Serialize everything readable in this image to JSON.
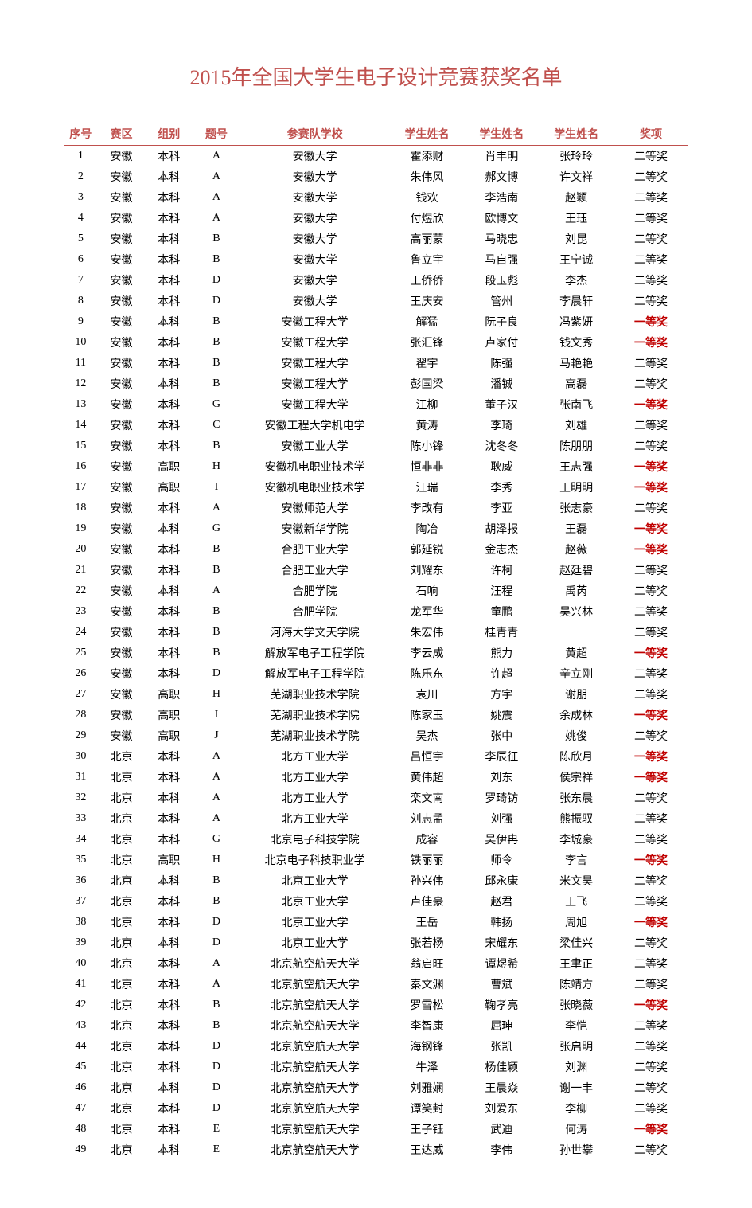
{
  "title": "2015年全国大学生电子设计竞赛获奖名单",
  "headers": {
    "seq": "序号",
    "region": "赛区",
    "group": "组别",
    "topic": "题号",
    "school": "参赛队学校",
    "name1": "学生姓名",
    "name2": "学生姓名",
    "name3": "学生姓名",
    "award": "奖项"
  },
  "award_colors": {
    "first": "#c00000",
    "second": "#000000"
  },
  "rows": [
    {
      "seq": "1",
      "region": "安徽",
      "group": "本科",
      "topic": "A",
      "school": "安徽大学",
      "n1": "霍添财",
      "n2": "肖丰明",
      "n3": "张玲玲",
      "award": "二等奖"
    },
    {
      "seq": "2",
      "region": "安徽",
      "group": "本科",
      "topic": "A",
      "school": "安徽大学",
      "n1": "朱伟风",
      "n2": "郝文博",
      "n3": "许文祥",
      "award": "二等奖"
    },
    {
      "seq": "3",
      "region": "安徽",
      "group": "本科",
      "topic": "A",
      "school": "安徽大学",
      "n1": "钱欢",
      "n2": "李浩南",
      "n3": "赵颖",
      "award": "二等奖"
    },
    {
      "seq": "4",
      "region": "安徽",
      "group": "本科",
      "topic": "A",
      "school": "安徽大学",
      "n1": "付煜欣",
      "n2": "欧博文",
      "n3": "王珏",
      "award": "二等奖"
    },
    {
      "seq": "5",
      "region": "安徽",
      "group": "本科",
      "topic": "B",
      "school": "安徽大学",
      "n1": "高丽蒙",
      "n2": "马晓忠",
      "n3": "刘昆",
      "award": "二等奖"
    },
    {
      "seq": "6",
      "region": "安徽",
      "group": "本科",
      "topic": "B",
      "school": "安徽大学",
      "n1": "鲁立宇",
      "n2": "马自强",
      "n3": "王宁诚",
      "award": "二等奖"
    },
    {
      "seq": "7",
      "region": "安徽",
      "group": "本科",
      "topic": "D",
      "school": "安徽大学",
      "n1": "王侨侨",
      "n2": "段玉彪",
      "n3": "李杰",
      "award": "二等奖"
    },
    {
      "seq": "8",
      "region": "安徽",
      "group": "本科",
      "topic": "D",
      "school": "安徽大学",
      "n1": "王庆安",
      "n2": "管州",
      "n3": "李晨轩",
      "award": "二等奖"
    },
    {
      "seq": "9",
      "region": "安徽",
      "group": "本科",
      "topic": "B",
      "school": "安徽工程大学",
      "n1": "解猛",
      "n2": "阮子良",
      "n3": "冯紫妍",
      "award": "一等奖"
    },
    {
      "seq": "10",
      "region": "安徽",
      "group": "本科",
      "topic": "B",
      "school": "安徽工程大学",
      "n1": "张汇锋",
      "n2": "卢家付",
      "n3": "钱文秀",
      "award": "一等奖"
    },
    {
      "seq": "11",
      "region": "安徽",
      "group": "本科",
      "topic": "B",
      "school": "安徽工程大学",
      "n1": "翟宇",
      "n2": "陈强",
      "n3": "马艳艳",
      "award": "二等奖"
    },
    {
      "seq": "12",
      "region": "安徽",
      "group": "本科",
      "topic": "B",
      "school": "安徽工程大学",
      "n1": "彭国梁",
      "n2": "潘铖",
      "n3": "高磊",
      "award": "二等奖"
    },
    {
      "seq": "13",
      "region": "安徽",
      "group": "本科",
      "topic": "G",
      "school": "安徽工程大学",
      "n1": "江柳",
      "n2": "董子汉",
      "n3": "张南飞",
      "award": "一等奖"
    },
    {
      "seq": "14",
      "region": "安徽",
      "group": "本科",
      "topic": "C",
      "school": "安徽工程大学机电学",
      "n1": "黄涛",
      "n2": "李琦",
      "n3": "刘雄",
      "award": "二等奖"
    },
    {
      "seq": "15",
      "region": "安徽",
      "group": "本科",
      "topic": "B",
      "school": "安徽工业大学",
      "n1": "陈小锋",
      "n2": "沈冬冬",
      "n3": "陈朋朋",
      "award": "二等奖"
    },
    {
      "seq": "16",
      "region": "安徽",
      "group": "高职",
      "topic": "H",
      "school": "安徽机电职业技术学",
      "n1": "恒非非",
      "n2": "耿威",
      "n3": "王志强",
      "award": "一等奖"
    },
    {
      "seq": "17",
      "region": "安徽",
      "group": "高职",
      "topic": "I",
      "school": "安徽机电职业技术学",
      "n1": "汪瑞",
      "n2": "李秀",
      "n3": "王明明",
      "award": "一等奖"
    },
    {
      "seq": "18",
      "region": "安徽",
      "group": "本科",
      "topic": "A",
      "school": "安徽师范大学",
      "n1": "李改有",
      "n2": "李亚",
      "n3": "张志豪",
      "award": "二等奖"
    },
    {
      "seq": "19",
      "region": "安徽",
      "group": "本科",
      "topic": "G",
      "school": "安徽新华学院",
      "n1": "陶冶",
      "n2": "胡泽报",
      "n3": "王磊",
      "award": "一等奖"
    },
    {
      "seq": "20",
      "region": "安徽",
      "group": "本科",
      "topic": "B",
      "school": "合肥工业大学",
      "n1": "郭延锐",
      "n2": "金志杰",
      "n3": "赵薇",
      "award": "一等奖"
    },
    {
      "seq": "21",
      "region": "安徽",
      "group": "本科",
      "topic": "B",
      "school": "合肥工业大学",
      "n1": "刘耀东",
      "n2": "许柯",
      "n3": "赵廷碧",
      "award": "二等奖"
    },
    {
      "seq": "22",
      "region": "安徽",
      "group": "本科",
      "topic": "A",
      "school": "合肥学院",
      "n1": "石响",
      "n2": "汪程",
      "n3": "禹芮",
      "award": "二等奖"
    },
    {
      "seq": "23",
      "region": "安徽",
      "group": "本科",
      "topic": "B",
      "school": "合肥学院",
      "n1": "龙军华",
      "n2": "童鹏",
      "n3": "吴兴林",
      "award": "二等奖"
    },
    {
      "seq": "24",
      "region": "安徽",
      "group": "本科",
      "topic": "B",
      "school": "河海大学文天学院",
      "n1": "朱宏伟",
      "n2": "桂青青",
      "n3": "",
      "award": "二等奖"
    },
    {
      "seq": "25",
      "region": "安徽",
      "group": "本科",
      "topic": "B",
      "school": "解放军电子工程学院",
      "n1": "李云成",
      "n2": "熊力",
      "n3": "黄超",
      "award": "一等奖"
    },
    {
      "seq": "26",
      "region": "安徽",
      "group": "本科",
      "topic": "D",
      "school": "解放军电子工程学院",
      "n1": "陈乐东",
      "n2": "许超",
      "n3": "辛立刚",
      "award": "二等奖"
    },
    {
      "seq": "27",
      "region": "安徽",
      "group": "高职",
      "topic": "H",
      "school": "芜湖职业技术学院",
      "n1": "袁川",
      "n2": "方宇",
      "n3": "谢朋",
      "award": "二等奖"
    },
    {
      "seq": "28",
      "region": "安徽",
      "group": "高职",
      "topic": "I",
      "school": "芜湖职业技术学院",
      "n1": "陈家玉",
      "n2": "姚震",
      "n3": "余成林",
      "award": "一等奖"
    },
    {
      "seq": "29",
      "region": "安徽",
      "group": "高职",
      "topic": "J",
      "school": "芜湖职业技术学院",
      "n1": "吴杰",
      "n2": "张中",
      "n3": "姚俊",
      "award": "二等奖"
    },
    {
      "seq": "30",
      "region": "北京",
      "group": "本科",
      "topic": "A",
      "school": "北方工业大学",
      "n1": "吕恒宇",
      "n2": "李辰征",
      "n3": "陈欣月",
      "award": "一等奖"
    },
    {
      "seq": "31",
      "region": "北京",
      "group": "本科",
      "topic": "A",
      "school": "北方工业大学",
      "n1": "黄伟超",
      "n2": "刘东",
      "n3": "侯宗祥",
      "award": "一等奖"
    },
    {
      "seq": "32",
      "region": "北京",
      "group": "本科",
      "topic": "A",
      "school": "北方工业大学",
      "n1": "栾文南",
      "n2": "罗琦钫",
      "n3": "张东晨",
      "award": "二等奖"
    },
    {
      "seq": "33",
      "region": "北京",
      "group": "本科",
      "topic": "A",
      "school": "北方工业大学",
      "n1": "刘志孟",
      "n2": "刘强",
      "n3": "熊振驭",
      "award": "二等奖"
    },
    {
      "seq": "34",
      "region": "北京",
      "group": "本科",
      "topic": "G",
      "school": "北京电子科技学院",
      "n1": "成容",
      "n2": "吴伊冉",
      "n3": "李城豪",
      "award": "二等奖"
    },
    {
      "seq": "35",
      "region": "北京",
      "group": "高职",
      "topic": "H",
      "school": "北京电子科技职业学",
      "n1": "铁丽丽",
      "n2": "师令",
      "n3": "李言",
      "award": "一等奖"
    },
    {
      "seq": "36",
      "region": "北京",
      "group": "本科",
      "topic": "B",
      "school": "北京工业大学",
      "n1": "孙兴伟",
      "n2": "邱永康",
      "n3": "米文昊",
      "award": "二等奖"
    },
    {
      "seq": "37",
      "region": "北京",
      "group": "本科",
      "topic": "B",
      "school": "北京工业大学",
      "n1": "卢佳豪",
      "n2": "赵君",
      "n3": "王飞",
      "award": "二等奖"
    },
    {
      "seq": "38",
      "region": "北京",
      "group": "本科",
      "topic": "D",
      "school": "北京工业大学",
      "n1": "王岳",
      "n2": "韩扬",
      "n3": "周旭",
      "award": "一等奖"
    },
    {
      "seq": "39",
      "region": "北京",
      "group": "本科",
      "topic": "D",
      "school": "北京工业大学",
      "n1": "张若杨",
      "n2": "宋耀东",
      "n3": "梁佳兴",
      "award": "二等奖"
    },
    {
      "seq": "40",
      "region": "北京",
      "group": "本科",
      "topic": "A",
      "school": "北京航空航天大学",
      "n1": "翁启旺",
      "n2": "谭煜希",
      "n3": "王聿正",
      "award": "二等奖"
    },
    {
      "seq": "41",
      "region": "北京",
      "group": "本科",
      "topic": "A",
      "school": "北京航空航天大学",
      "n1": "秦文渊",
      "n2": "曹斌",
      "n3": "陈靖方",
      "award": "二等奖"
    },
    {
      "seq": "42",
      "region": "北京",
      "group": "本科",
      "topic": "B",
      "school": "北京航空航天大学",
      "n1": "罗雪松",
      "n2": "鞠孝亮",
      "n3": "张晓薇",
      "award": "一等奖"
    },
    {
      "seq": "43",
      "region": "北京",
      "group": "本科",
      "topic": "B",
      "school": "北京航空航天大学",
      "n1": "李智康",
      "n2": "屈珅",
      "n3": "李恺",
      "award": "二等奖"
    },
    {
      "seq": "44",
      "region": "北京",
      "group": "本科",
      "topic": "D",
      "school": "北京航空航天大学",
      "n1": "海钢锋",
      "n2": "张凯",
      "n3": "张启明",
      "award": "二等奖"
    },
    {
      "seq": "45",
      "region": "北京",
      "group": "本科",
      "topic": "D",
      "school": "北京航空航天大学",
      "n1": "牛泽",
      "n2": "杨佳颖",
      "n3": "刘渊",
      "award": "二等奖"
    },
    {
      "seq": "46",
      "region": "北京",
      "group": "本科",
      "topic": "D",
      "school": "北京航空航天大学",
      "n1": "刘雅娴",
      "n2": "王晨焱",
      "n3": "谢一丰",
      "award": "二等奖"
    },
    {
      "seq": "47",
      "region": "北京",
      "group": "本科",
      "topic": "D",
      "school": "北京航空航天大学",
      "n1": "谭笑封",
      "n2": "刘爱东",
      "n3": "李柳",
      "award": "二等奖"
    },
    {
      "seq": "48",
      "region": "北京",
      "group": "本科",
      "topic": "E",
      "school": "北京航空航天大学",
      "n1": "王子钰",
      "n2": "武迪",
      "n3": "何涛",
      "award": "一等奖"
    },
    {
      "seq": "49",
      "region": "北京",
      "group": "本科",
      "topic": "E",
      "school": "北京航空航天大学",
      "n1": "王达威",
      "n2": "李伟",
      "n3": "孙世攀",
      "award": "二等奖"
    }
  ]
}
